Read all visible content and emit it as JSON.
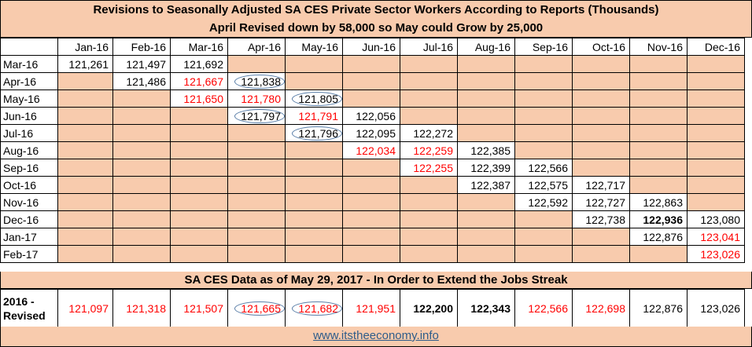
{
  "title": "Revisions to Seasonally Adjusted SA CES Private Sector Workers According to Reports (Thousands)",
  "subtitle": "April Revised down by 58,000 so May could Grow by 25,000",
  "columns": [
    "Jan-16",
    "Feb-16",
    "Mar-16",
    "Apr-16",
    "May-16",
    "Jun-16",
    "Jul-16",
    "Aug-16",
    "Sep-16",
    "Oct-16",
    "Nov-16",
    "Dec-16"
  ],
  "rows": [
    {
      "label": "Mar-16",
      "cells": [
        {
          "v": "121,261",
          "c": "black"
        },
        {
          "v": "121,497",
          "c": "black"
        },
        {
          "v": "121,692",
          "c": "black"
        },
        null,
        null,
        null,
        null,
        null,
        null,
        null,
        null,
        null
      ]
    },
    {
      "label": "Apr-16",
      "cells": [
        null,
        {
          "v": "121,486",
          "c": "black"
        },
        {
          "v": "121,667",
          "c": "red"
        },
        {
          "v": "121,838",
          "c": "black",
          "circled": true
        },
        null,
        null,
        null,
        null,
        null,
        null,
        null,
        null
      ]
    },
    {
      "label": "May-16",
      "cells": [
        null,
        null,
        {
          "v": "121,650",
          "c": "red"
        },
        {
          "v": "121,780",
          "c": "red"
        },
        {
          "v": "121,805",
          "c": "black",
          "circled": true
        },
        null,
        null,
        null,
        null,
        null,
        null,
        null
      ]
    },
    {
      "label": "Jun-16",
      "cells": [
        null,
        null,
        null,
        {
          "v": "121,797",
          "c": "black",
          "circled": true
        },
        {
          "v": "121,791",
          "c": "red"
        },
        {
          "v": "122,056",
          "c": "black"
        },
        null,
        null,
        null,
        null,
        null,
        null
      ]
    },
    {
      "label": "Jul-16",
      "cells": [
        null,
        null,
        null,
        null,
        {
          "v": "121,796",
          "c": "black",
          "circled": true
        },
        {
          "v": "122,095",
          "c": "black"
        },
        {
          "v": "122,272",
          "c": "black"
        },
        null,
        null,
        null,
        null,
        null
      ]
    },
    {
      "label": "Aug-16",
      "cells": [
        null,
        null,
        null,
        null,
        null,
        {
          "v": "122,034",
          "c": "red"
        },
        {
          "v": "122,259",
          "c": "red"
        },
        {
          "v": "122,385",
          "c": "black"
        },
        null,
        null,
        null,
        null
      ]
    },
    {
      "label": "Sep-16",
      "cells": [
        null,
        null,
        null,
        null,
        null,
        null,
        {
          "v": "122,255",
          "c": "red"
        },
        {
          "v": "122,399",
          "c": "black"
        },
        {
          "v": "122,566",
          "c": "black"
        },
        null,
        null,
        null
      ]
    },
    {
      "label": "Oct-16",
      "cells": [
        null,
        null,
        null,
        null,
        null,
        null,
        null,
        {
          "v": "122,387",
          "c": "black"
        },
        {
          "v": "122,575",
          "c": "black"
        },
        {
          "v": "122,717",
          "c": "black"
        },
        null,
        null
      ]
    },
    {
      "label": "Nov-16",
      "cells": [
        null,
        null,
        null,
        null,
        null,
        null,
        null,
        null,
        {
          "v": "122,592",
          "c": "black"
        },
        {
          "v": "122,727",
          "c": "black"
        },
        {
          "v": "122,863",
          "c": "black"
        },
        null
      ]
    },
    {
      "label": "Dec-16",
      "cells": [
        null,
        null,
        null,
        null,
        null,
        null,
        null,
        null,
        null,
        {
          "v": "122,738",
          "c": "black"
        },
        {
          "v": "122,936",
          "c": "black",
          "bold": true
        },
        {
          "v": "123,080",
          "c": "black"
        }
      ]
    },
    {
      "label": "Jan-17",
      "cells": [
        null,
        null,
        null,
        null,
        null,
        null,
        null,
        null,
        null,
        null,
        {
          "v": "122,876",
          "c": "black"
        },
        {
          "v": "123,041",
          "c": "red"
        }
      ]
    },
    {
      "label": "Feb-17",
      "cells": [
        null,
        null,
        null,
        null,
        null,
        null,
        null,
        null,
        null,
        null,
        null,
        {
          "v": "123,026",
          "c": "red"
        }
      ]
    }
  ],
  "band": "SA CES Data as of May 29, 2017 - In Order to Extend the Jobs Streak",
  "revised": {
    "label": "2016 - Revised",
    "cells": [
      {
        "v": "121,097",
        "c": "red"
      },
      {
        "v": "121,318",
        "c": "red"
      },
      {
        "v": "121,507",
        "c": "red"
      },
      {
        "v": "121,665",
        "c": "red",
        "circled": true
      },
      {
        "v": "121,682",
        "c": "red",
        "circled": true
      },
      {
        "v": "121,951",
        "c": "red"
      },
      {
        "v": "122,200",
        "c": "black",
        "bold": true
      },
      {
        "v": "122,343",
        "c": "black",
        "bold": true
      },
      {
        "v": "122,566",
        "c": "red"
      },
      {
        "v": "122,698",
        "c": "red"
      },
      {
        "v": "122,876",
        "c": "black"
      },
      {
        "v": "123,026",
        "c": "black"
      }
    ]
  },
  "footer_link": "www.itstheeconomy.info",
  "colors": {
    "fill": "#f8cbad",
    "revision_red": "#ff0000",
    "circle": "#5b7fa8",
    "link": "#2e5c8a"
  }
}
